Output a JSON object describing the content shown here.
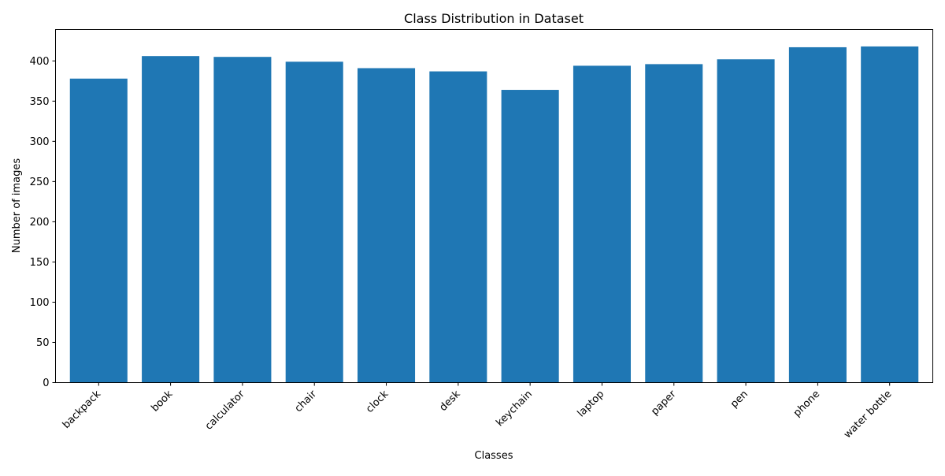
{
  "chart_data": {
    "type": "bar",
    "title": "Class Distribution in Dataset",
    "xlabel": "Classes",
    "ylabel": "Number of images",
    "categories": [
      "backpack",
      "book",
      "calculator",
      "chair",
      "clock",
      "desk",
      "keychain",
      "laptop",
      "paper",
      "pen",
      "phone",
      "water bottle"
    ],
    "values": [
      378,
      406,
      405,
      399,
      391,
      387,
      364,
      394,
      396,
      402,
      417,
      418
    ],
    "ylim": [
      0,
      439
    ],
    "yticks": [
      0,
      50,
      100,
      150,
      200,
      250,
      300,
      350,
      400
    ],
    "grid": false,
    "legend": "none",
    "bar_color": "#1f77b4"
  }
}
